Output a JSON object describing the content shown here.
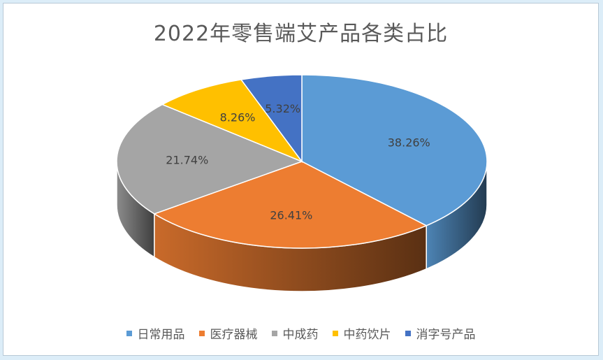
{
  "chart_data": {
    "type": "pie",
    "title": "2022年零售端艾产品各类占比",
    "categories": [
      "日常用品",
      "医疗器械",
      "中成药",
      "中药饮片",
      "消字号产品"
    ],
    "values": [
      38.26,
      26.41,
      21.74,
      8.26,
      5.32
    ],
    "data_labels": [
      "38.26%",
      "26.41%",
      "21.74%",
      "8.26%",
      "5.32%"
    ],
    "colors": [
      "#5b9bd5",
      "#ed7d31",
      "#a5a5a5",
      "#ffc000",
      "#4472c4"
    ],
    "style": "3d",
    "legend": "bottom"
  }
}
